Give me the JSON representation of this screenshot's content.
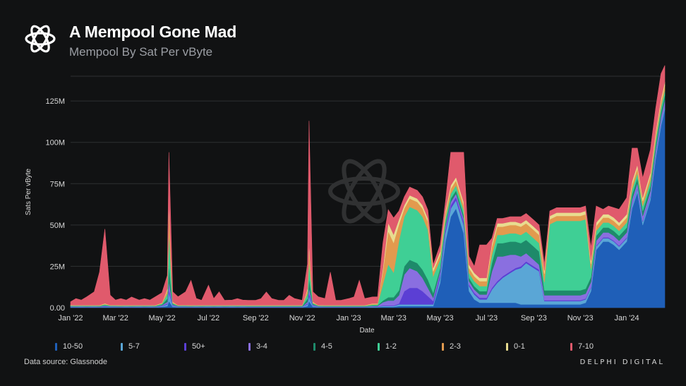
{
  "title": "A Mempool Gone Mad",
  "subtitle": "Mempool By Sat Per vByte",
  "source": "Data source: Glassnode",
  "brand": "DELPHI DIGITAL",
  "colors": {
    "background": "#111213",
    "grid": "#2e3033",
    "10-50": "#1f5fb8",
    "5-7": "#5aa6d6",
    "50+": "#5b3fd4",
    "3-4": "#8a6fe0",
    "4-5": "#1e8a6a",
    "1-2": "#3fcf95",
    "2-3": "#e29a4e",
    "0-1": "#e8dc8f",
    "7-10": "#e05a6c"
  },
  "chart_data": {
    "type": "area",
    "stacked": true,
    "xlabel": "Date",
    "ylabel": "Sats Per vByte",
    "xlim": [
      "2022-01-01",
      "2024-02-20"
    ],
    "ylim": [
      0,
      140000000
    ],
    "x_ticks": [
      "Jan '22",
      "Mar '22",
      "May '22",
      "Jul '22",
      "Sep '22",
      "Nov '22",
      "Jan '23",
      "Mar '23",
      "May '23",
      "Jul '23",
      "Sep '23",
      "Nov '23",
      "Jan '24"
    ],
    "x_tick_dates": [
      "2022-01-01",
      "2022-03-01",
      "2022-05-01",
      "2022-07-01",
      "2022-09-01",
      "2022-11-01",
      "2023-01-01",
      "2023-03-01",
      "2023-05-01",
      "2023-07-01",
      "2023-09-01",
      "2023-11-01",
      "2024-01-01"
    ],
    "y_ticks": [
      "0.00",
      "25M",
      "50M",
      "75M",
      "100M",
      "125M"
    ],
    "y_tick_values": [
      0,
      25000000,
      50000000,
      75000000,
      100000000,
      125000000
    ],
    "grid": true,
    "legend_position": "bottom",
    "dates": [
      "2022-01-01",
      "2022-01-08",
      "2022-01-15",
      "2022-01-22",
      "2022-02-01",
      "2022-02-08",
      "2022-02-15",
      "2022-02-22",
      "2022-03-01",
      "2022-03-08",
      "2022-03-15",
      "2022-03-22",
      "2022-04-01",
      "2022-04-08",
      "2022-04-15",
      "2022-04-22",
      "2022-05-01",
      "2022-05-08",
      "2022-05-10",
      "2022-05-15",
      "2022-05-22",
      "2022-06-01",
      "2022-06-08",
      "2022-06-15",
      "2022-06-22",
      "2022-07-01",
      "2022-07-08",
      "2022-07-15",
      "2022-07-22",
      "2022-08-01",
      "2022-08-08",
      "2022-08-15",
      "2022-08-22",
      "2022-09-01",
      "2022-09-08",
      "2022-09-15",
      "2022-09-22",
      "2022-10-01",
      "2022-10-08",
      "2022-10-15",
      "2022-10-22",
      "2022-11-01",
      "2022-11-08",
      "2022-11-10",
      "2022-11-15",
      "2022-11-22",
      "2022-12-01",
      "2022-12-08",
      "2022-12-15",
      "2022-12-22",
      "2023-01-01",
      "2023-01-08",
      "2023-01-15",
      "2023-01-22",
      "2023-02-01",
      "2023-02-08",
      "2023-02-15",
      "2023-02-22",
      "2023-03-01",
      "2023-03-08",
      "2023-03-15",
      "2023-03-22",
      "2023-04-01",
      "2023-04-08",
      "2023-04-15",
      "2023-04-22",
      "2023-05-01",
      "2023-05-08",
      "2023-05-15",
      "2023-05-22",
      "2023-06-01",
      "2023-06-08",
      "2023-06-15",
      "2023-06-22",
      "2023-07-01",
      "2023-07-08",
      "2023-07-15",
      "2023-07-22",
      "2023-08-01",
      "2023-08-08",
      "2023-08-15",
      "2023-08-22",
      "2023-09-01",
      "2023-09-08",
      "2023-09-15",
      "2023-09-22",
      "2023-10-01",
      "2023-10-08",
      "2023-10-15",
      "2023-10-22",
      "2023-11-01",
      "2023-11-08",
      "2023-11-15",
      "2023-11-22",
      "2023-12-01",
      "2023-12-08",
      "2023-12-15",
      "2023-12-22",
      "2024-01-01",
      "2024-01-08",
      "2024-01-15",
      "2024-01-22",
      "2024-02-01",
      "2024-02-08",
      "2024-02-15",
      "2024-02-20"
    ],
    "series": [
      {
        "name": "10-50",
        "values": [
          0.3,
          0.2,
          0.3,
          0.2,
          0.3,
          0.2,
          0.4,
          0.3,
          0.3,
          0.2,
          0.3,
          0.2,
          0.3,
          0.2,
          0.3,
          0.2,
          0.5,
          1.0,
          4.0,
          0.5,
          0.3,
          0.3,
          0.2,
          0.3,
          0.2,
          0.3,
          0.2,
          0.3,
          0.2,
          0.3,
          0.2,
          0.3,
          0.2,
          0.2,
          0.2,
          0.2,
          0.2,
          0.2,
          0.2,
          0.2,
          0.2,
          0.2,
          1.0,
          4.0,
          0.5,
          0.3,
          0.2,
          0.2,
          0.2,
          0.2,
          0.2,
          0.2,
          0.2,
          0.2,
          0.3,
          0.3,
          0.5,
          0.5,
          0.5,
          1.0,
          1.0,
          1.0,
          1.0,
          1.0,
          1.0,
          1.0,
          15,
          40,
          55,
          60,
          45,
          10,
          5,
          3,
          3,
          3,
          3,
          3,
          3,
          3,
          2,
          2,
          2,
          2,
          2,
          2,
          2,
          2,
          2,
          2,
          2,
          3,
          10,
          35,
          40,
          40,
          38,
          35,
          40,
          60,
          70,
          50,
          65,
          90,
          110,
          120
        ]
      },
      {
        "name": "5-7",
        "values": [
          0.2,
          0.2,
          0.2,
          0.2,
          0.2,
          0.2,
          0.3,
          0.2,
          0.2,
          0.2,
          0.2,
          0.2,
          0.2,
          0.2,
          0.2,
          0.2,
          0.4,
          1.0,
          5.0,
          0.5,
          0.2,
          0.2,
          0.2,
          0.2,
          0.2,
          0.2,
          0.2,
          0.2,
          0.2,
          0.2,
          0.2,
          0.2,
          0.2,
          0.2,
          0.2,
          0.2,
          0.2,
          0.2,
          0.2,
          0.2,
          0.2,
          0.2,
          1.0,
          3.0,
          0.5,
          0.2,
          0.2,
          0.2,
          0.2,
          0.2,
          0.2,
          0.2,
          0.2,
          0.2,
          0.3,
          0.3,
          0.5,
          0.5,
          0.5,
          1.0,
          1.0,
          1.0,
          1.0,
          1.0,
          1.0,
          1.0,
          3,
          5,
          5,
          5,
          5,
          3,
          3,
          2,
          2,
          8,
          12,
          15,
          18,
          20,
          22,
          25,
          22,
          20,
          2,
          2,
          2,
          2,
          2,
          2,
          2,
          2,
          2,
          2,
          2,
          2,
          2,
          2,
          2,
          2,
          2,
          2,
          2,
          2,
          2,
          2
        ]
      },
      {
        "name": "50+",
        "values": [
          0.1,
          0.1,
          0.1,
          0.1,
          0.1,
          0.1,
          0.2,
          0.1,
          0.1,
          0.1,
          0.1,
          0.1,
          0.1,
          0.1,
          0.1,
          0.1,
          0.2,
          0.5,
          2.0,
          0.3,
          0.1,
          0.1,
          0.1,
          0.1,
          0.1,
          0.1,
          0.1,
          0.1,
          0.1,
          0.1,
          0.1,
          0.1,
          0.1,
          0.1,
          0.1,
          0.1,
          0.1,
          0.1,
          0.1,
          0.1,
          0.1,
          0.1,
          0.5,
          2.0,
          0.3,
          0.1,
          0.1,
          0.1,
          0.1,
          0.1,
          0.1,
          0.1,
          0.1,
          0.1,
          0.1,
          0.2,
          0.3,
          0.3,
          0.3,
          0.5,
          8,
          10,
          10,
          8,
          5,
          2,
          2,
          2,
          2,
          2,
          2,
          1,
          1,
          1,
          1,
          1,
          1,
          1,
          1,
          1,
          1,
          1,
          1,
          1,
          0.5,
          0.5,
          0.5,
          0.5,
          0.5,
          0.5,
          0.5,
          0.5,
          0.5,
          0.5,
          0.5,
          0.5,
          0.5,
          0.5,
          0.5,
          0.5,
          0.5,
          0.5,
          0.5,
          0.5,
          0.5,
          0.5
        ]
      },
      {
        "name": "3-4",
        "values": [
          0.2,
          0.2,
          0.2,
          0.2,
          0.2,
          0.2,
          0.3,
          0.2,
          0.2,
          0.2,
          0.2,
          0.2,
          0.2,
          0.2,
          0.2,
          0.2,
          0.4,
          1.0,
          5.0,
          0.5,
          0.2,
          0.2,
          0.2,
          0.2,
          0.2,
          0.2,
          0.2,
          0.2,
          0.2,
          0.2,
          0.2,
          0.2,
          0.2,
          0.2,
          0.2,
          0.2,
          0.2,
          0.2,
          0.2,
          0.2,
          0.2,
          0.2,
          1.0,
          3.0,
          0.5,
          0.2,
          0.2,
          0.2,
          0.2,
          0.2,
          0.2,
          0.2,
          0.2,
          0.2,
          0.3,
          0.3,
          2,
          3,
          3,
          5,
          10,
          12,
          10,
          8,
          5,
          2,
          2,
          2,
          2,
          2,
          2,
          2,
          2,
          2,
          2,
          10,
          15,
          12,
          10,
          8,
          6,
          5,
          4,
          3,
          3,
          3,
          3,
          3,
          3,
          3,
          3,
          3,
          3,
          3,
          3,
          3,
          3,
          3,
          3,
          3,
          3,
          3,
          3,
          3,
          3,
          3
        ]
      },
      {
        "name": "4-5",
        "values": [
          0.2,
          0.2,
          0.2,
          0.2,
          0.2,
          0.2,
          0.3,
          0.2,
          0.2,
          0.2,
          0.2,
          0.2,
          0.2,
          0.2,
          0.2,
          0.2,
          0.4,
          2.0,
          10.0,
          0.5,
          0.2,
          0.2,
          0.2,
          0.2,
          0.2,
          0.2,
          0.2,
          0.2,
          0.2,
          0.2,
          0.2,
          0.2,
          0.2,
          0.2,
          0.2,
          0.2,
          0.2,
          0.2,
          0.2,
          0.2,
          0.2,
          0.2,
          2.0,
          6.0,
          0.5,
          0.2,
          0.2,
          0.2,
          0.2,
          0.2,
          0.2,
          0.2,
          0.2,
          0.2,
          0.3,
          0.3,
          1,
          2,
          2,
          3,
          5,
          5,
          5,
          5,
          5,
          3,
          2,
          2,
          2,
          2,
          2,
          2,
          2,
          2,
          2,
          5,
          8,
          8,
          8,
          8,
          8,
          8,
          8,
          8,
          3,
          3,
          3,
          3,
          3,
          3,
          3,
          3,
          3,
          3,
          3,
          3,
          3,
          3,
          3,
          3,
          3,
          3,
          3,
          3,
          3,
          3
        ]
      },
      {
        "name": "1-2",
        "values": [
          0.3,
          0.3,
          0.3,
          0.3,
          0.3,
          0.3,
          0.5,
          0.3,
          0.3,
          0.3,
          0.3,
          0.3,
          0.3,
          0.3,
          0.3,
          0.3,
          0.5,
          3.0,
          20.0,
          0.5,
          0.3,
          0.3,
          0.3,
          0.3,
          0.3,
          0.3,
          0.3,
          0.3,
          0.3,
          0.3,
          0.3,
          0.3,
          0.3,
          0.3,
          0.3,
          0.3,
          0.3,
          0.3,
          0.3,
          0.3,
          0.3,
          0.3,
          3.0,
          10.0,
          0.5,
          0.3,
          0.3,
          0.3,
          0.3,
          0.3,
          0.3,
          0.3,
          0.3,
          0.3,
          0.5,
          0.5,
          10,
          20,
          15,
          30,
          30,
          32,
          32,
          32,
          30,
          10,
          5,
          3,
          3,
          3,
          3,
          3,
          3,
          3,
          3,
          5,
          5,
          5,
          5,
          5,
          5,
          5,
          5,
          5,
          5,
          40,
          42,
          42,
          42,
          42,
          42,
          42,
          5,
          3,
          3,
          3,
          3,
          3,
          3,
          3,
          3,
          3,
          3,
          3,
          3,
          3
        ]
      },
      {
        "name": "2-3",
        "values": [
          0.2,
          0.2,
          0.2,
          0.2,
          0.2,
          0.2,
          0.4,
          0.2,
          0.2,
          0.2,
          0.2,
          0.2,
          0.2,
          0.2,
          0.2,
          0.2,
          0.4,
          2.0,
          15.0,
          0.5,
          0.2,
          0.2,
          0.2,
          0.2,
          0.2,
          0.2,
          0.2,
          0.2,
          0.2,
          0.2,
          0.2,
          0.2,
          0.2,
          0.2,
          0.2,
          0.2,
          0.2,
          0.2,
          0.2,
          0.2,
          0.2,
          0.2,
          2.0,
          8.0,
          0.5,
          0.2,
          0.2,
          0.2,
          0.2,
          0.2,
          0.2,
          0.2,
          0.2,
          0.2,
          0.5,
          0.5,
          8,
          20,
          18,
          10,
          5,
          5,
          5,
          5,
          5,
          3,
          3,
          3,
          3,
          3,
          3,
          3,
          3,
          3,
          3,
          5,
          5,
          5,
          5,
          5,
          5,
          5,
          5,
          5,
          5,
          3,
          3,
          3,
          3,
          3,
          3,
          3,
          3,
          3,
          3,
          3,
          3,
          3,
          3,
          3,
          3,
          3,
          3,
          3,
          3,
          3
        ]
      },
      {
        "name": "0-1",
        "values": [
          0.1,
          0.1,
          0.1,
          0.1,
          0.1,
          0.1,
          0.2,
          0.1,
          0.1,
          0.1,
          0.1,
          0.1,
          0.1,
          0.1,
          0.1,
          0.1,
          0.2,
          1.0,
          3.0,
          0.3,
          0.1,
          0.1,
          0.1,
          0.1,
          0.1,
          0.1,
          0.1,
          0.1,
          0.1,
          0.1,
          0.1,
          0.1,
          0.1,
          0.1,
          0.1,
          0.1,
          0.1,
          0.1,
          0.1,
          0.1,
          0.1,
          0.1,
          1.0,
          3.0,
          0.3,
          0.1,
          0.1,
          0.1,
          0.1,
          0.1,
          0.1,
          0.1,
          0.1,
          0.1,
          0.2,
          0.2,
          2,
          5,
          5,
          3,
          2,
          2,
          2,
          2,
          2,
          2,
          2,
          2,
          2,
          2,
          2,
          2,
          2,
          2,
          2,
          2,
          2,
          2,
          2,
          2,
          2,
          2,
          2,
          2,
          2,
          2,
          2,
          2,
          2,
          2,
          2,
          2,
          2,
          2,
          2,
          2,
          2,
          2,
          2,
          2,
          2,
          2,
          2,
          2,
          2,
          2
        ]
      },
      {
        "name": "7-10",
        "values": [
          2,
          4,
          3,
          5,
          8,
          20,
          45,
          6,
          3,
          4,
          3,
          5,
          3,
          4,
          3,
          5,
          6,
          8,
          30,
          6,
          5,
          8,
          15,
          4,
          3,
          12,
          4,
          8,
          3,
          3,
          4,
          3,
          3,
          3,
          4,
          8,
          4,
          3,
          3,
          6,
          4,
          3,
          15,
          74,
          6,
          5,
          4,
          20,
          3,
          3,
          4,
          5,
          15,
          4,
          4,
          4,
          15,
          8,
          10,
          5,
          5,
          5,
          5,
          5,
          5,
          2,
          4,
          5,
          20,
          15,
          30,
          5,
          4,
          20,
          20,
          3,
          3,
          3,
          3,
          3,
          4,
          4,
          4,
          4,
          4,
          3,
          3,
          3,
          3,
          3,
          3,
          3,
          8,
          10,
          3,
          5,
          6,
          8,
          10,
          20,
          10,
          12,
          14,
          14,
          15,
          10
        ]
      }
    ]
  }
}
